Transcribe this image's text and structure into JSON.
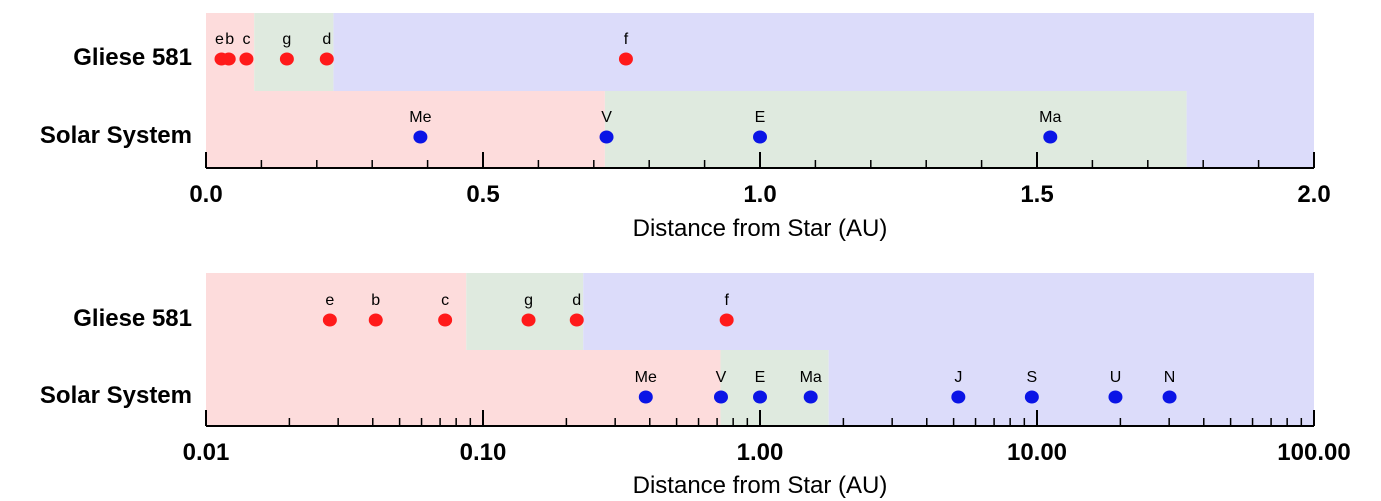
{
  "colors": {
    "hot_zone": "#fddcdc",
    "habitable_zone": "#dfeadf",
    "cold_zone": "#dcdcfa",
    "gliese_planet": "#ff1a1a",
    "solar_planet": "#0a14e6",
    "axis": "#000000"
  },
  "chart_data": [
    {
      "type": "scatter",
      "scale": "linear",
      "xlabel": "Distance from Star (AU)",
      "xlim": [
        0,
        2.0
      ],
      "ticks": [
        {
          "value": 0,
          "label": "0.0"
        },
        {
          "value": 0.5,
          "label": "0.5"
        },
        {
          "value": 1.0,
          "label": "1.0"
        },
        {
          "value": 1.5,
          "label": "1.5"
        },
        {
          "value": 2.0,
          "label": "2.0"
        }
      ],
      "minor_step": 0.1,
      "grid": false,
      "rows": [
        {
          "name": "Gliese 581",
          "zones": {
            "habitable_start": 0.087,
            "habitable_end": 0.23
          },
          "planets": [
            {
              "label": "e",
              "x": 0.028
            },
            {
              "label": "b",
              "x": 0.041
            },
            {
              "label": "c",
              "x": 0.073
            },
            {
              "label": "g",
              "x": 0.146
            },
            {
              "label": "d",
              "x": 0.218
            },
            {
              "label": "f",
              "x": 0.758
            }
          ]
        },
        {
          "name": "Solar System",
          "zones": {
            "habitable_start": 0.72,
            "habitable_end": 1.77
          },
          "planets": [
            {
              "label": "Me",
              "x": 0.387
            },
            {
              "label": "V",
              "x": 0.723
            },
            {
              "label": "E",
              "x": 1.0
            },
            {
              "label": "Ma",
              "x": 1.524
            }
          ]
        }
      ]
    },
    {
      "type": "scatter",
      "scale": "log",
      "xlabel": "Distance from Star (AU)",
      "xlim": [
        0.01,
        100.0
      ],
      "ticks": [
        {
          "value": 0.01,
          "label": "0.01"
        },
        {
          "value": 0.1,
          "label": "0.10"
        },
        {
          "value": 1,
          "label": "1.00"
        },
        {
          "value": 10,
          "label": "10.00"
        },
        {
          "value": 100,
          "label": "100.00"
        }
      ],
      "grid": false,
      "rows": [
        {
          "name": "Gliese 581",
          "zones": {
            "habitable_start": 0.087,
            "habitable_end": 0.23
          },
          "planets": [
            {
              "label": "e",
              "x": 0.028
            },
            {
              "label": "b",
              "x": 0.041
            },
            {
              "label": "c",
              "x": 0.073
            },
            {
              "label": "g",
              "x": 0.146
            },
            {
              "label": "d",
              "x": 0.218
            },
            {
              "label": "f",
              "x": 0.758
            }
          ]
        },
        {
          "name": "Solar System",
          "zones": {
            "habitable_start": 0.72,
            "habitable_end": 1.77
          },
          "planets": [
            {
              "label": "Me",
              "x": 0.387
            },
            {
              "label": "V",
              "x": 0.723
            },
            {
              "label": "E",
              "x": 1.0
            },
            {
              "label": "Ma",
              "x": 1.524
            },
            {
              "label": "J",
              "x": 5.2
            },
            {
              "label": "S",
              "x": 9.58
            },
            {
              "label": "U",
              "x": 19.2
            },
            {
              "label": "N",
              "x": 30.1
            }
          ]
        }
      ]
    }
  ]
}
